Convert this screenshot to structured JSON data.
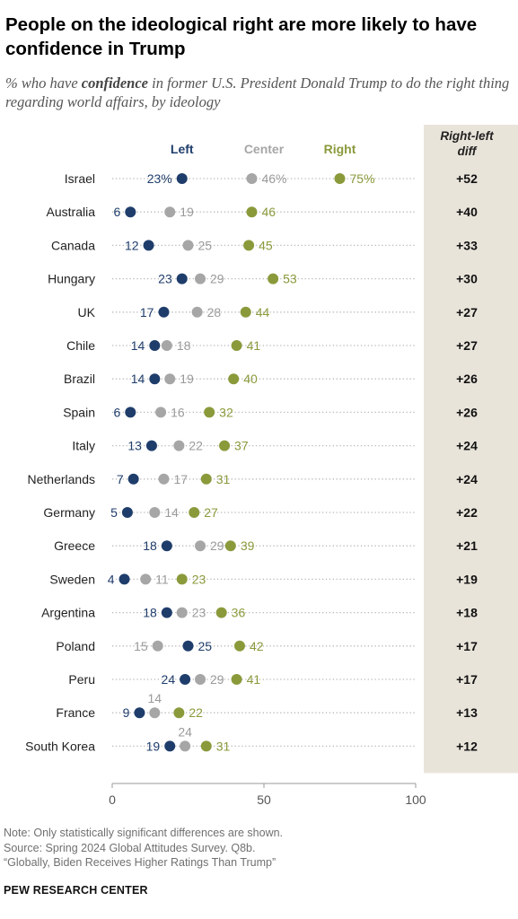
{
  "title": "People on the ideological right are more likely to have confidence in Trump",
  "subtitle": {
    "before": "% who have ",
    "emphasis": "confidence",
    "after": " in former U.S. President Donald Trump to do the right thing regarding world affairs, by ideology"
  },
  "colors": {
    "left": "#1f3d6b",
    "center": "#a6a6a6",
    "right": "#8a9a3b",
    "diff_panel": "#e9e4da",
    "dotted_line": "#b8b8b8"
  },
  "chart_data": {
    "type": "dot",
    "series": [
      {
        "name": "Left",
        "key": "left"
      },
      {
        "name": "Center",
        "key": "center"
      },
      {
        "name": "Right",
        "key": "right"
      }
    ],
    "diff_header": "Right-left diff",
    "xlim": [
      0,
      100
    ],
    "x_ticks": [
      "0",
      "50",
      "100"
    ],
    "rows": [
      {
        "country": "Israel",
        "left": 23,
        "center": 46,
        "right": 75,
        "diff": "+52",
        "labels": {
          "left": "23%",
          "center": "46%",
          "right": "75%"
        }
      },
      {
        "country": "Australia",
        "left": 6,
        "center": 19,
        "right": 46,
        "diff": "+40"
      },
      {
        "country": "Canada",
        "left": 12,
        "center": 25,
        "right": 45,
        "diff": "+33"
      },
      {
        "country": "Hungary",
        "left": 23,
        "center": 29,
        "right": 53,
        "diff": "+30"
      },
      {
        "country": "UK",
        "left": 17,
        "center": 28,
        "right": 44,
        "diff": "+27"
      },
      {
        "country": "Chile",
        "left": 14,
        "center": 18,
        "right": 41,
        "diff": "+27"
      },
      {
        "country": "Brazil",
        "left": 14,
        "center": 19,
        "right": 40,
        "diff": "+26"
      },
      {
        "country": "Spain",
        "left": 6,
        "center": 16,
        "right": 32,
        "diff": "+26"
      },
      {
        "country": "Italy",
        "left": 13,
        "center": 22,
        "right": 37,
        "diff": "+24"
      },
      {
        "country": "Netherlands",
        "left": 7,
        "center": 17,
        "right": 31,
        "diff": "+24"
      },
      {
        "country": "Germany",
        "left": 5,
        "center": 14,
        "right": 27,
        "diff": "+22"
      },
      {
        "country": "Greece",
        "left": 18,
        "center": 29,
        "right": 39,
        "diff": "+21"
      },
      {
        "country": "Sweden",
        "left": 4,
        "center": 11,
        "right": 23,
        "diff": "+19"
      },
      {
        "country": "Argentina",
        "left": 18,
        "center": 23,
        "right": 36,
        "diff": "+18"
      },
      {
        "country": "Poland",
        "left": 25,
        "center": 15,
        "right": 42,
        "diff": "+17"
      },
      {
        "country": "Peru",
        "left": 24,
        "center": 29,
        "right": 41,
        "diff": "+17"
      },
      {
        "country": "France",
        "left": 9,
        "center": 14,
        "right": 22,
        "diff": "+13"
      },
      {
        "country": "South Korea",
        "left": 19,
        "center": 24,
        "right": 31,
        "diff": "+12"
      }
    ]
  },
  "notes": [
    "Note: Only statistically significant differences are shown.",
    "Source: Spring 2024 Global Attitudes Survey. Q8b.",
    "“Globally, Biden Receives Higher Ratings Than Trump”"
  ],
  "brand": "PEW RESEARCH CENTER"
}
